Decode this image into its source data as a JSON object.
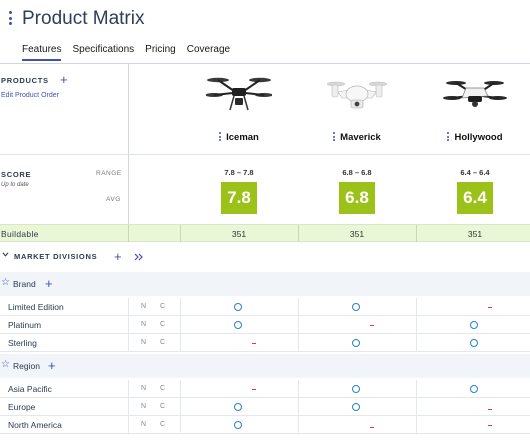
{
  "header": {
    "title": "Product Matrix",
    "tabs": [
      {
        "label": "Features",
        "active": true
      },
      {
        "label": "Specifications",
        "active": false
      },
      {
        "label": "Pricing",
        "active": false
      },
      {
        "label": "Coverage",
        "active": false
      }
    ]
  },
  "products_panel": {
    "label": "PRODUCTS",
    "edit_link": "Edit Product Order"
  },
  "products": [
    {
      "name": "Iceman",
      "image": "drone-black-icon"
    },
    {
      "name": "Maverick",
      "image": "drone-white-icon"
    },
    {
      "name": "Hollywood",
      "image": "drone-black-white-icon"
    }
  ],
  "score": {
    "label": "SCORE",
    "subtitle": "Up to date",
    "range_label": "RANGE",
    "avg_label": "AVG",
    "ranges": [
      "7.8 – 7.8",
      "6.8 – 6.8",
      "6.4 – 6.4"
    ],
    "avgs": [
      "7.8",
      "6.8",
      "6.4"
    ],
    "avg_color": "#9cc21a"
  },
  "buildable": {
    "label": "Buildable",
    "values": [
      "351",
      "351",
      "351"
    ]
  },
  "market": {
    "label": "MARKET DIVISIONS"
  },
  "groups": {
    "brand": {
      "label": "Brand",
      "items": [
        {
          "label": "Limited Edition",
          "n": "N",
          "c": "C",
          "marks": [
            "o",
            "o",
            "-"
          ]
        },
        {
          "label": "Platinum",
          "n": "N",
          "c": "C",
          "marks": [
            "o",
            "-",
            "o"
          ]
        },
        {
          "label": "Sterling",
          "n": "N",
          "c": "C",
          "marks": [
            "-",
            "o",
            "o"
          ]
        }
      ]
    },
    "region": {
      "label": "Region",
      "items": [
        {
          "label": "Asia Pacific",
          "n": "N",
          "c": "C",
          "marks": [
            "-",
            "o",
            "o"
          ]
        },
        {
          "label": "Europe",
          "n": "N",
          "c": "C",
          "marks": [
            "o",
            "o",
            "-"
          ]
        },
        {
          "label": "North America",
          "n": "N",
          "c": "C",
          "marks": [
            "o",
            "-",
            "-"
          ]
        }
      ]
    }
  },
  "colors": {
    "accent": "#3f51b5",
    "available": "#2a7fc9",
    "unavailable": "#e53935",
    "buildable_bg": "#eaf7d6"
  }
}
